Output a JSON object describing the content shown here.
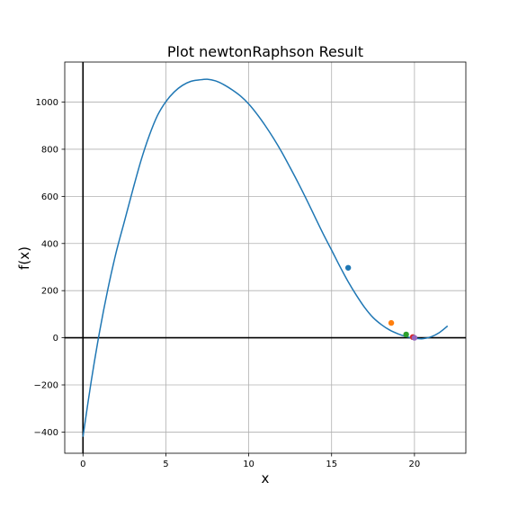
{
  "chart_data": {
    "type": "line",
    "title": "Plot newtonRaphson Result",
    "xlabel": "x",
    "ylabel": "f(x)",
    "xlim": [
      -1.1,
      23.1
    ],
    "ylim": [
      -490,
      1170
    ],
    "xticks": [
      0,
      5,
      10,
      15,
      20
    ],
    "yticks": [
      -400,
      -200,
      0,
      200,
      400,
      600,
      800,
      1000
    ],
    "xtick_labels": [
      "0",
      "5",
      "10",
      "15",
      "20"
    ],
    "ytick_labels": [
      "−400",
      "−200",
      "0",
      "200",
      "400",
      "600",
      "800",
      "1000"
    ],
    "grid": true,
    "curve": {
      "x": [
        0,
        0.5,
        1,
        1.5,
        2,
        2.5,
        3,
        3.5,
        4,
        4.5,
        5,
        5.5,
        6,
        6.5,
        7,
        7.5,
        8,
        8.5,
        9,
        9.5,
        10,
        10.5,
        11,
        11.5,
        12,
        12.5,
        13,
        13.5,
        14,
        14.5,
        15,
        15.5,
        16,
        16.5,
        17,
        17.5,
        18,
        18.5,
        19,
        19.5,
        20,
        20.5,
        21,
        21.5,
        22
      ],
      "y": [
        -420,
        -183,
        25,
        206,
        362,
        494,
        626,
        752,
        858,
        944,
        1002,
        1043,
        1071,
        1088,
        1094,
        1097,
        1090,
        1074,
        1052,
        1026,
        992,
        949,
        900,
        846,
        787,
        722,
        655,
        585,
        512,
        440,
        372,
        303,
        238,
        180,
        128,
        86,
        56,
        33,
        17,
        5,
        -2,
        -4,
        4,
        22,
        50
      ]
    },
    "iterations": [
      {
        "x": 16.0,
        "y": 297,
        "color": "#1f77b4"
      },
      {
        "x": 18.6,
        "y": 63,
        "color": "#ff7f0e"
      },
      {
        "x": 19.5,
        "y": 14,
        "color": "#2ca02c"
      },
      {
        "x": 19.9,
        "y": 3,
        "color": "#d62728"
      },
      {
        "x": 20.0,
        "y": 0,
        "color": "#9467bd"
      }
    ],
    "colors": {
      "curve": "#1f77b4",
      "axes_lines": "#000000",
      "grid": "#b0b0b0"
    }
  }
}
